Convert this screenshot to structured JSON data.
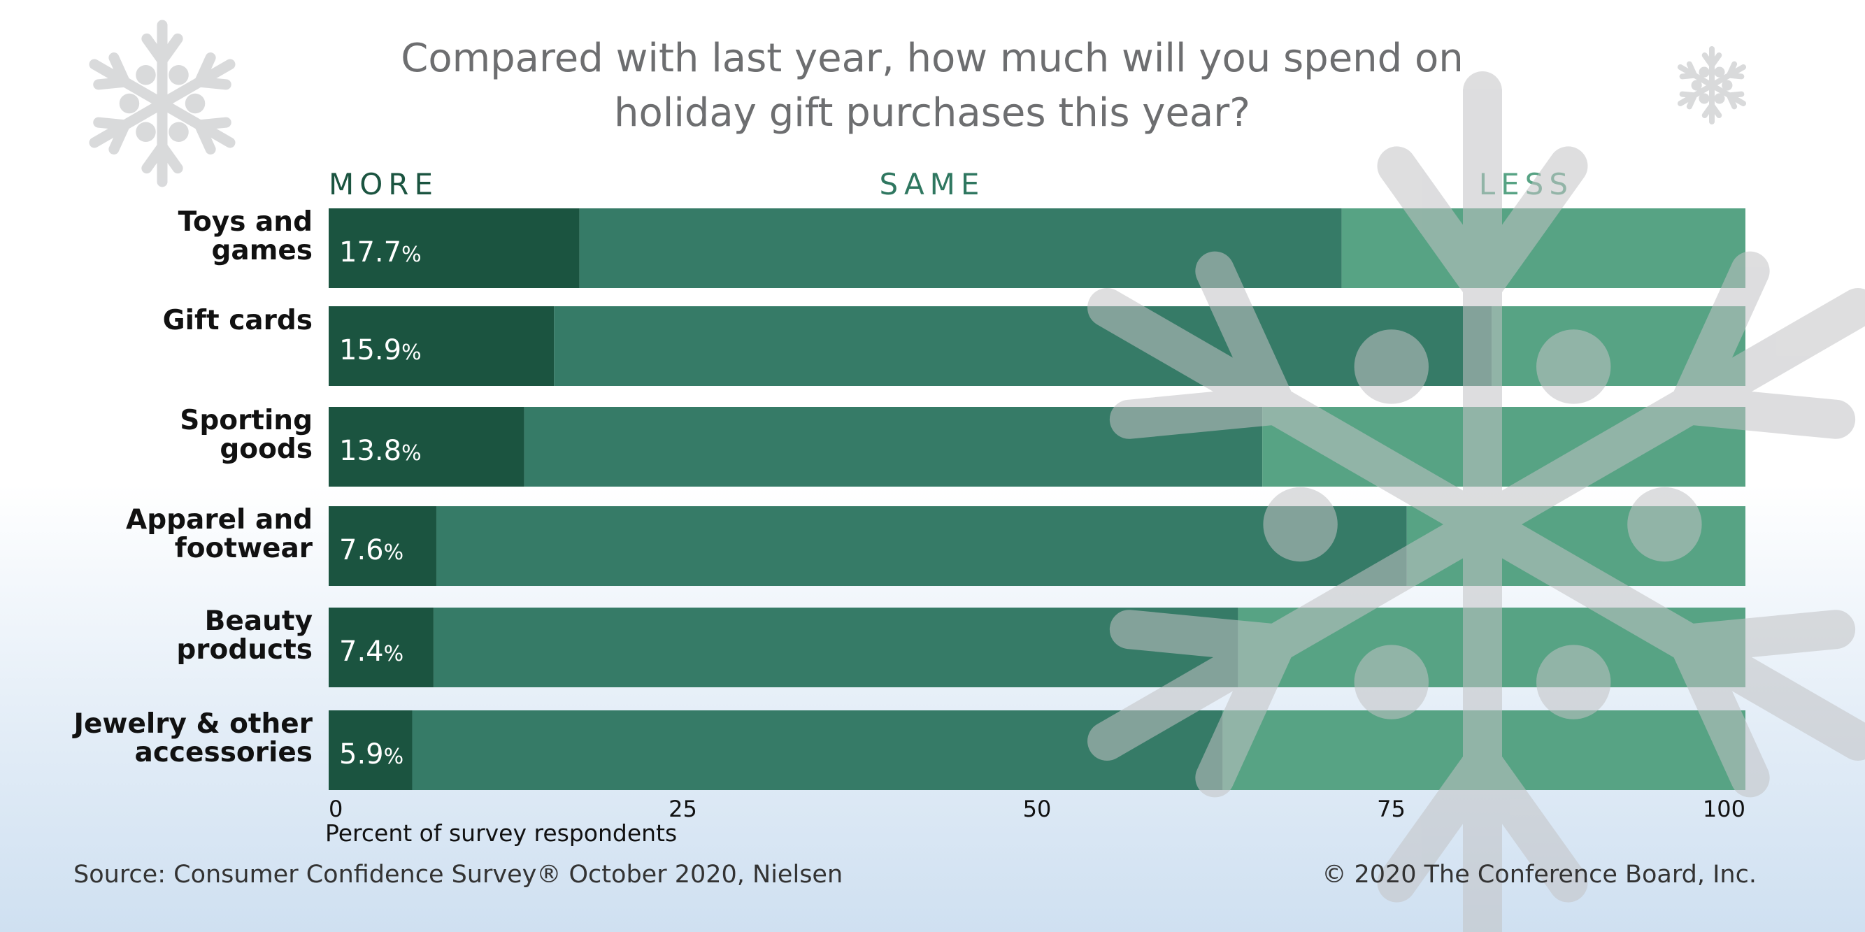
{
  "title_lines": [
    "Compared with last year, how much will you spend on",
    "holiday gift purchases this year?"
  ],
  "footer": {
    "source": "Source: Consumer Confidence Survey® October 2020, Nielsen",
    "copyright": "© 2020 The Conference Board, Inc."
  },
  "colors": {
    "more": "#1b5440",
    "same": "#367b67",
    "less": "#57a384",
    "header_more": "#1b5440",
    "header_same": "#2f7760",
    "header_less": "#57a384",
    "snowflake": "#b7b8ba"
  },
  "icons": [
    "snowflake-icon",
    "snowflake-icon",
    "snowflake-icon"
  ],
  "chart_data": {
    "type": "bar",
    "orientation": "horizontal",
    "stacked": true,
    "column_headers": [
      "MORE",
      "SAME",
      "LESS"
    ],
    "categories": [
      [
        "Toys and",
        "games"
      ],
      [
        "Gift cards"
      ],
      [
        "Sporting",
        "goods"
      ],
      [
        "Apparel and",
        "footwear"
      ],
      [
        "Beauty",
        "products"
      ],
      [
        "Jewelry & other",
        "accessories"
      ]
    ],
    "series": [
      {
        "name": "MORE",
        "values": [
          17.7,
          15.9,
          13.8,
          7.6,
          7.4,
          5.9
        ],
        "labels": [
          "17.7",
          "15.9",
          "13.8",
          "7.6",
          "7.4",
          "5.9"
        ]
      },
      {
        "name": "SAME",
        "values": [
          53.8,
          66.2,
          52.1,
          68.5,
          56.8,
          57.2
        ]
      },
      {
        "name": "LESS",
        "values": [
          28.5,
          17.9,
          34.1,
          23.9,
          35.8,
          36.9
        ]
      }
    ],
    "value_suffix": "%",
    "xlim": [
      0,
      100
    ],
    "xticks": [
      0,
      25,
      50,
      75,
      100
    ],
    "xlabel": "Percent of survey respondents",
    "grid": false,
    "legend": "column headers above bars"
  }
}
